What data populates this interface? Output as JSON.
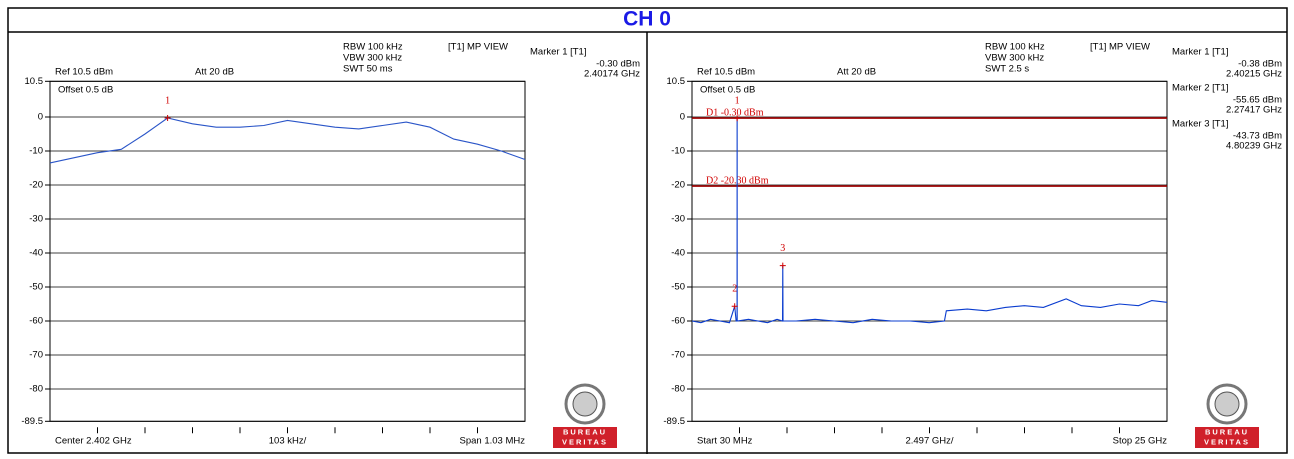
{
  "header": "CH 0",
  "logo": {
    "top": "BUREAU",
    "bottom": "VERITAS"
  },
  "chart_data": [
    {
      "type": "line",
      "settings": {
        "ref": "Ref 10.5 dBm",
        "att": "Att 20 dB",
        "offset": "Offset 0.5 dB",
        "rbw": "RBW 100 kHz",
        "vbw": "VBW 300 kHz",
        "swt": "SWT 50 ms",
        "view": "[T1] MP VIEW"
      },
      "x_labels": {
        "start": "Center 2.402 GHz",
        "step": "103 kHz/",
        "stop": "Span 1.03 MHz"
      },
      "xlim": [
        2.401485,
        2.402515
      ],
      "ylim": [
        -89.5,
        10.5
      ],
      "yticks": [
        10.5,
        0,
        -10,
        -20,
        -30,
        -40,
        -50,
        -60,
        -70,
        -80,
        -89.5
      ],
      "grid": true,
      "x": [
        2.401485,
        2.4015365,
        2.401588,
        2.4016395,
        2.401691,
        2.40174,
        2.401794,
        2.4018455,
        2.401897,
        2.4019485,
        2.402,
        2.4020515,
        2.402103,
        2.4021545,
        2.402206,
        2.4022575,
        2.402309,
        2.4023605,
        2.402412,
        2.4024635,
        2.402515
      ],
      "series": [
        {
          "color": "#2a55c8",
          "values": [
            -13.5,
            -12,
            -10.5,
            -9.5,
            -5,
            -0.3,
            -2,
            -3,
            -3,
            -2.5,
            -1,
            -2,
            -3,
            -3.5,
            -2.5,
            -1.5,
            -3,
            -6.5,
            -8,
            -10,
            -12.5
          ]
        }
      ],
      "markers": [
        {
          "number": "1",
          "header": "Marker 1 [T1]",
          "x": 2.40174,
          "y": -0.3,
          "y_label": "-0.30 dBm",
          "x_label": "2.40174 GHz"
        }
      ],
      "display_lines": []
    },
    {
      "type": "line",
      "settings": {
        "ref": "Ref 10.5 dBm",
        "att": "Att 20 dB",
        "offset": "Offset 0.5 dB",
        "rbw": "RBW 100 kHz",
        "vbw": "VBW 300 kHz",
        "swt": "SWT 2.5 s",
        "view": "[T1] MP VIEW"
      },
      "x_labels": {
        "start": "Start 30 MHz",
        "step": "2.497 GHz/",
        "stop": "Stop 25 GHz"
      },
      "xlim": [
        0.03,
        25
      ],
      "ylim": [
        -89.5,
        10.5
      ],
      "yticks": [
        10.5,
        0,
        -10,
        -20,
        -30,
        -40,
        -50,
        -60,
        -70,
        -80,
        -89.5
      ],
      "grid": true,
      "x": [
        0.03,
        0.5,
        1,
        1.5,
        2,
        2.27417,
        2.35,
        2.4,
        2.40215,
        2.405,
        3,
        3.5,
        4,
        4.5,
        4.79,
        4.80239,
        4.815,
        5.5,
        6.5,
        7.5,
        8.5,
        9.5,
        10.5,
        11.5,
        12.5,
        13.3,
        13.4,
        14.5,
        15.5,
        16.5,
        17.5,
        18.5,
        19.7,
        20.5,
        21.5,
        22.5,
        23.5,
        24.2,
        25
      ],
      "series": [
        {
          "color": "#0a3ccf",
          "values": [
            -60,
            -60.5,
            -59.5,
            -60,
            -60.5,
            -55.65,
            -60,
            -60,
            -0.38,
            -60,
            -59.5,
            -60,
            -60.5,
            -59.5,
            -60,
            -43.73,
            -60,
            -60,
            -59.5,
            -60,
            -60.5,
            -59.5,
            -60,
            -60,
            -60.5,
            -60,
            -57,
            -56.5,
            -57,
            -56,
            -55.5,
            -56,
            -53.5,
            -55.5,
            -56,
            -55,
            -55.5,
            -54,
            -54.5
          ]
        }
      ],
      "markers": [
        {
          "number": "1",
          "header": "Marker 1 [T1]",
          "x": 2.40215,
          "y": -0.38,
          "y_label": "-0.38 dBm",
          "x_label": "2.40215 GHz"
        },
        {
          "number": "2",
          "header": "Marker 2 [T1]",
          "x": 2.27417,
          "y": -55.65,
          "y_label": "-55.65 dBm",
          "x_label": "2.27417 GHz"
        },
        {
          "number": "3",
          "header": "Marker 3 [T1]",
          "x": 4.80239,
          "y": -43.73,
          "y_label": "-43.73 dBm",
          "x_label": "4.80239 GHz"
        }
      ],
      "display_lines": [
        {
          "label": "D1 -0.30 dBm",
          "value": -0.3,
          "color": "#a00000"
        },
        {
          "label": "D2 -20.30 dBm",
          "value": -20.3,
          "color": "#a00000"
        }
      ]
    }
  ]
}
